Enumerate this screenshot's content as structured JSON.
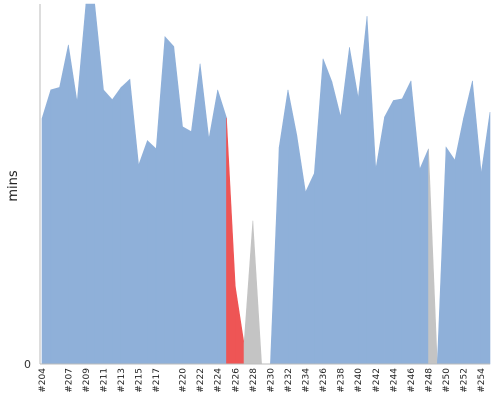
{
  "chart_data": {
    "type": "area",
    "ylabel": "mins",
    "y_ticks": [
      "0"
    ],
    "x_tick_labels": [
      "#204",
      "#207",
      "#209",
      "#211",
      "#213",
      "#215",
      "#217",
      "#220",
      "#222",
      "#224",
      "#226",
      "#228",
      "#230",
      "#232",
      "#234",
      "#236",
      "#238",
      "#240",
      "#242",
      "#244",
      "#246",
      "#248",
      "#250",
      "#252",
      "#254"
    ],
    "colors": {
      "success": "#8fb0d9",
      "failed": "#ee5555",
      "aborted": "#c4c4c4",
      "axis": "#bbbbbb"
    },
    "builds": [
      {
        "build": 204,
        "status": "success",
        "value": 30
      },
      {
        "build": 205,
        "status": "success",
        "value": 33.5
      },
      {
        "build": 206,
        "status": "success",
        "value": 33.8
      },
      {
        "build": 207,
        "status": "success",
        "value": 39
      },
      {
        "build": 208,
        "status": "success",
        "value": 32
      },
      {
        "build": 209,
        "status": "success",
        "value": 57
      },
      {
        "build": 210,
        "status": "success",
        "value": 50
      },
      {
        "build": 211,
        "status": "success",
        "value": 33.5
      },
      {
        "build": 212,
        "status": "success",
        "value": 32.3
      },
      {
        "build": 213,
        "status": "success",
        "value": 33.8
      },
      {
        "build": 214,
        "status": "success",
        "value": 34.8
      },
      {
        "build": 215,
        "status": "success",
        "value": 24.3
      },
      {
        "build": 216,
        "status": "success",
        "value": 27.3
      },
      {
        "build": 217,
        "status": "success",
        "value": 26.3
      },
      {
        "build": 218,
        "status": "success",
        "value": 40
      },
      {
        "build": 219,
        "status": "success",
        "value": 38.8
      },
      {
        "build": 220,
        "status": "success",
        "value": 29
      },
      {
        "build": 221,
        "status": "success",
        "value": 28.4
      },
      {
        "build": 222,
        "status": "success",
        "value": 36.7
      },
      {
        "build": 223,
        "status": "success",
        "value": 27.5
      },
      {
        "build": 224,
        "status": "success",
        "value": 33.5
      },
      {
        "build": 225,
        "status": "success",
        "value": 30.1
      },
      {
        "build": 226,
        "status": "failed",
        "value": 9.5
      },
      {
        "build": 227,
        "status": "failed",
        "value": 2.5
      },
      {
        "build": 228,
        "status": "aborted",
        "value": 17.5
      },
      {
        "build": 229,
        "status": "aborted",
        "value": 0
      },
      {
        "build": 230,
        "status": "aborted",
        "value": 0
      },
      {
        "build": 231,
        "status": "success",
        "value": 26.5
      },
      {
        "build": 232,
        "status": "success",
        "value": 33.5
      },
      {
        "build": 233,
        "status": "success",
        "value": 28
      },
      {
        "build": 234,
        "status": "success",
        "value": 21
      },
      {
        "build": 235,
        "status": "success",
        "value": 23.3
      },
      {
        "build": 236,
        "status": "success",
        "value": 37.3
      },
      {
        "build": 237,
        "status": "success",
        "value": 34.5
      },
      {
        "build": 238,
        "status": "success",
        "value": 30.2
      },
      {
        "build": 239,
        "status": "success",
        "value": 38.7
      },
      {
        "build": 240,
        "status": "success",
        "value": 32.5
      },
      {
        "build": 241,
        "status": "success",
        "value": 42.5
      },
      {
        "build": 242,
        "status": "success",
        "value": 23.8
      },
      {
        "build": 243,
        "status": "success",
        "value": 30.2
      },
      {
        "build": 244,
        "status": "success",
        "value": 32.2
      },
      {
        "build": 245,
        "status": "success",
        "value": 32.4
      },
      {
        "build": 246,
        "status": "success",
        "value": 34.6
      },
      {
        "build": 247,
        "status": "success",
        "value": 23.8
      },
      {
        "build": 248,
        "status": "success",
        "value": 26.3
      },
      {
        "build": 249,
        "status": "aborted",
        "value": 0
      },
      {
        "build": 250,
        "status": "success",
        "value": 26.5
      },
      {
        "build": 251,
        "status": "success",
        "value": 24.9
      },
      {
        "build": 252,
        "status": "success",
        "value": 30.1
      },
      {
        "build": 253,
        "status": "success",
        "value": 34.6
      },
      {
        "build": 254,
        "status": "success",
        "value": 23.3
      },
      {
        "build": 255,
        "status": "success",
        "value": 30.8
      }
    ],
    "ylim": [
      0,
      44
    ]
  }
}
